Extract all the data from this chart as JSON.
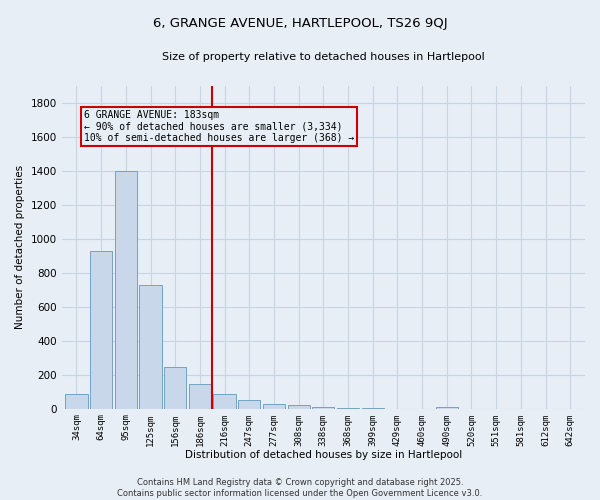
{
  "title": "6, GRANGE AVENUE, HARTLEPOOL, TS26 9QJ",
  "subtitle": "Size of property relative to detached houses in Hartlepool",
  "xlabel": "Distribution of detached houses by size in Hartlepool",
  "ylabel": "Number of detached properties",
  "categories": [
    "34sqm",
    "64sqm",
    "95sqm",
    "125sqm",
    "156sqm",
    "186sqm",
    "216sqm",
    "247sqm",
    "277sqm",
    "308sqm",
    "338sqm",
    "368sqm",
    "399sqm",
    "429sqm",
    "460sqm",
    "490sqm",
    "520sqm",
    "551sqm",
    "581sqm",
    "612sqm",
    "642sqm"
  ],
  "values": [
    85,
    930,
    1400,
    730,
    245,
    145,
    88,
    52,
    25,
    20,
    10,
    5,
    2,
    0,
    0,
    13,
    0,
    0,
    0,
    0,
    0
  ],
  "bar_color": "#c8d8ea",
  "bar_edge_color": "#6699bb",
  "grid_color": "#c8d4e0",
  "background_color": "#e8eef5",
  "annotation_line_color": "#cc0000",
  "annotation_box_text": "6 GRANGE AVENUE: 183sqm\n← 90% of detached houses are smaller (3,334)\n10% of semi-detached houses are larger (368) →",
  "annotation_box_color": "#cc0000",
  "footer_text": "Contains HM Land Registry data © Crown copyright and database right 2025.\nContains public sector information licensed under the Open Government Licence v3.0.",
  "ylim": [
    0,
    1900
  ],
  "yticks": [
    0,
    200,
    400,
    600,
    800,
    1000,
    1200,
    1400,
    1600,
    1800
  ]
}
